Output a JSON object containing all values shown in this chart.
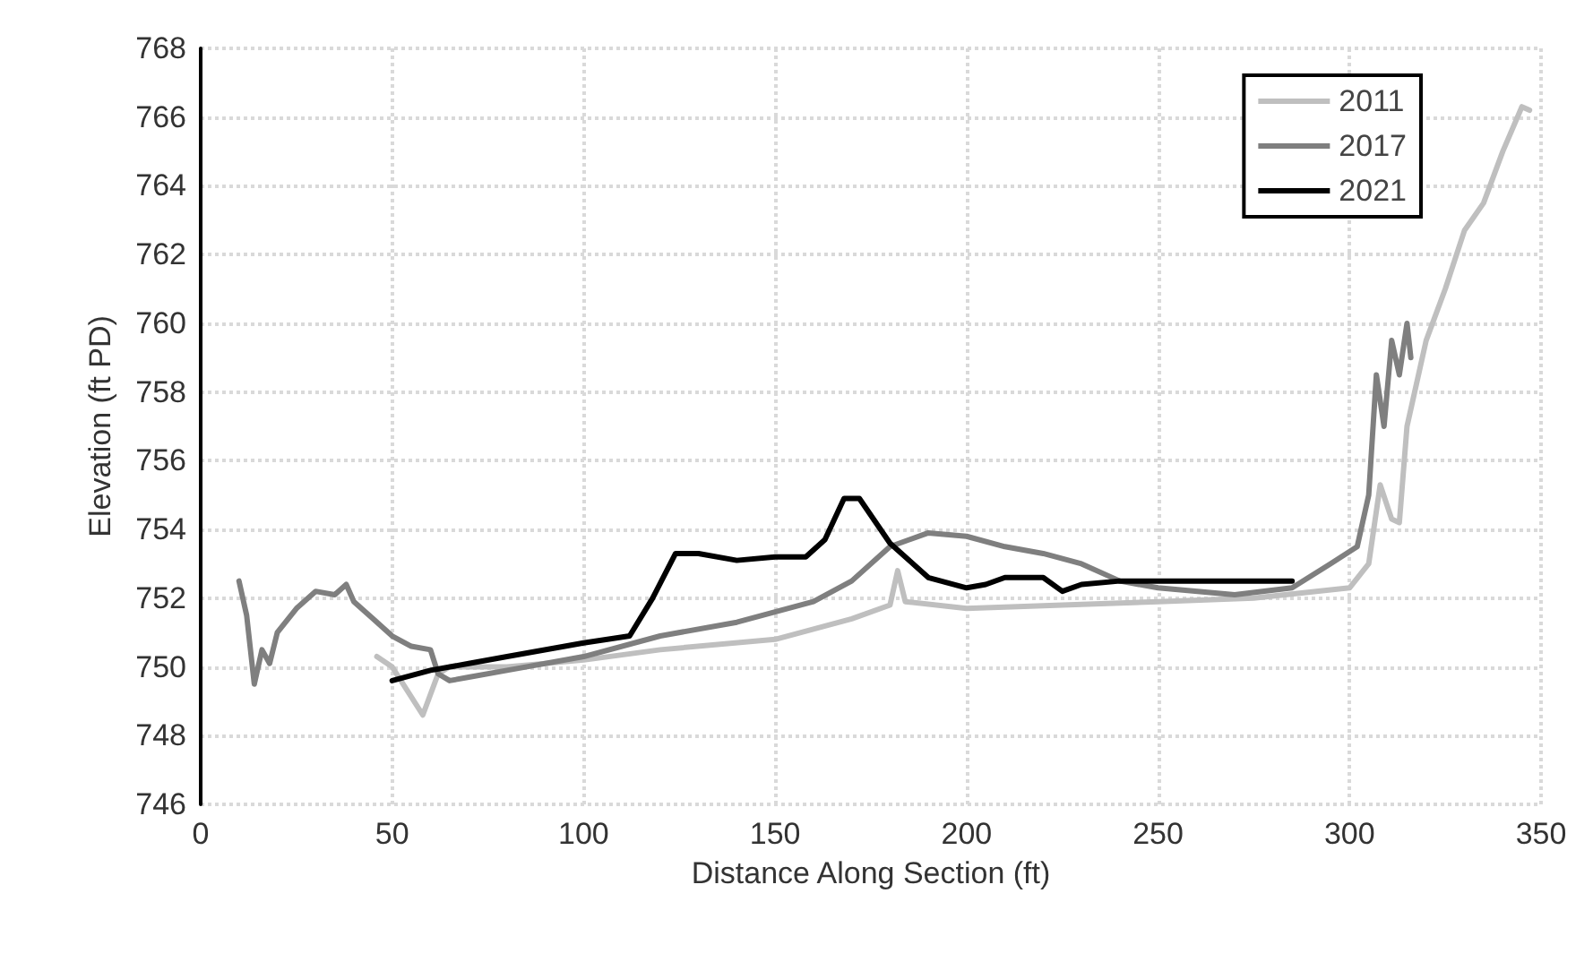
{
  "chart_data": {
    "type": "line",
    "xlabel": "Distance Along Section (ft)",
    "ylabel": "Elevation (ft PD)",
    "xlim": [
      0,
      350
    ],
    "xticks": [
      0,
      50,
      100,
      150,
      200,
      250,
      300,
      350
    ],
    "ylim": [
      746,
      768
    ],
    "yticks": [
      746,
      748,
      750,
      752,
      754,
      756,
      758,
      760,
      762,
      764,
      766,
      768
    ],
    "grid": true,
    "legend": "top right",
    "marker": "none",
    "line_style": "solid",
    "series": [
      {
        "name": "2011",
        "color": "#bfbfbf",
        "x": [
          46,
          50,
          54,
          58,
          62,
          65,
          80,
          100,
          120,
          150,
          170,
          180,
          182,
          184,
          200,
          225,
          250,
          275,
          300,
          305,
          308,
          311,
          313,
          315,
          320,
          325,
          330,
          335,
          340,
          345,
          347
        ],
        "values": [
          750.3,
          750.0,
          749.3,
          748.6,
          749.8,
          750.0,
          750.0,
          750.2,
          750.5,
          750.8,
          751.4,
          751.8,
          752.8,
          751.9,
          751.7,
          751.8,
          751.9,
          752.0,
          752.3,
          753.0,
          755.3,
          754.3,
          754.2,
          757.0,
          759.5,
          761.0,
          762.7,
          763.5,
          765.0,
          766.3,
          766.2
        ]
      },
      {
        "name": "2017",
        "color": "#7f7f7f",
        "x": [
          10,
          12,
          14,
          16,
          18,
          20,
          25,
          30,
          35,
          38,
          40,
          45,
          50,
          55,
          60,
          62,
          65,
          70,
          80,
          100,
          120,
          140,
          160,
          170,
          180,
          190,
          200,
          210,
          220,
          230,
          240,
          250,
          270,
          285,
          295,
          302,
          305,
          307,
          309,
          311,
          313,
          315,
          316
        ],
        "values": [
          752.5,
          751.5,
          749.5,
          750.5,
          750.1,
          751.0,
          751.7,
          752.2,
          752.1,
          752.4,
          751.9,
          751.4,
          750.9,
          750.6,
          750.5,
          749.8,
          749.6,
          749.7,
          749.9,
          750.3,
          750.9,
          751.3,
          751.9,
          752.5,
          753.5,
          753.9,
          753.8,
          753.5,
          753.3,
          753.0,
          752.5,
          752.3,
          752.1,
          752.3,
          753.0,
          753.5,
          755.0,
          758.5,
          757.0,
          759.5,
          758.5,
          760.0,
          759.0
        ]
      },
      {
        "name": "2021",
        "color": "#000000",
        "x": [
          50,
          60,
          70,
          80,
          100,
          112,
          118,
          124,
          130,
          140,
          150,
          158,
          163,
          168,
          172,
          180,
          190,
          200,
          205,
          210,
          220,
          225,
          230,
          240,
          260,
          275,
          285
        ],
        "values": [
          749.6,
          749.9,
          750.1,
          750.3,
          750.7,
          750.9,
          752.0,
          753.3,
          753.3,
          753.1,
          753.2,
          753.2,
          753.7,
          754.9,
          754.9,
          753.6,
          752.6,
          752.3,
          752.4,
          752.6,
          752.6,
          752.2,
          752.4,
          752.5,
          752.5,
          752.5,
          752.5
        ]
      }
    ]
  }
}
